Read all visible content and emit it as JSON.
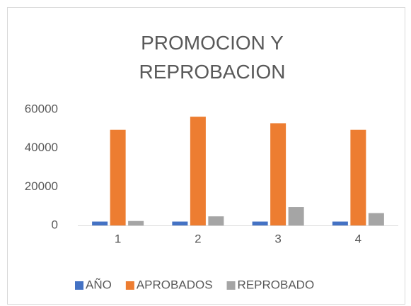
{
  "chart_data": {
    "type": "bar",
    "title": "PROMOCION Y REPROBACION",
    "categories": [
      "1",
      "2",
      "3",
      "4"
    ],
    "series": [
      {
        "name": "AÑO",
        "color": "#4472c4",
        "values": [
          2000,
          2000,
          2000,
          2000
        ]
      },
      {
        "name": "APROBADOS",
        "color": "#ed7d31",
        "values": [
          49500,
          56300,
          52900,
          49500
        ]
      },
      {
        "name": "REPROBADO",
        "color": "#a5a5a5",
        "values": [
          2300,
          4700,
          9500,
          6400
        ]
      }
    ],
    "ylim": [
      0,
      60000
    ],
    "yticks": [
      0,
      20000,
      40000,
      60000
    ],
    "grid": false,
    "legend": "bottom"
  }
}
